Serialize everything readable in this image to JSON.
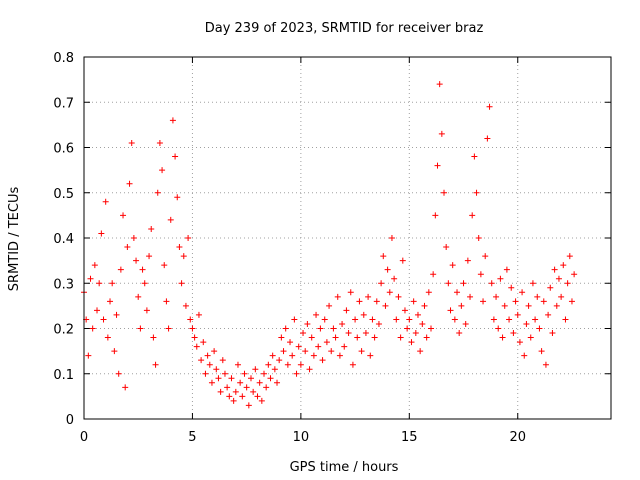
{
  "chart_data": {
    "type": "scatter",
    "title": "Day 239 of 2023, SRMTID for receiver braz",
    "xlabel": "GPS time / hours",
    "ylabel": "SRMTID / TECUs",
    "xlim": [
      0,
      24.3
    ],
    "ylim": [
      0,
      0.8
    ],
    "xticks": [
      0,
      5,
      10,
      15,
      20
    ],
    "yticks": [
      0,
      0.1,
      0.2,
      0.3,
      0.4,
      0.5,
      0.6,
      0.7,
      0.8
    ],
    "xtick_labels": [
      "0",
      "5",
      "10",
      "15",
      "20"
    ],
    "ytick_labels": [
      "0",
      "0.1",
      "0.2",
      "0.3",
      "0.4",
      "0.5",
      "0.6",
      "0.7",
      "0.8"
    ],
    "grid": true,
    "marker": "+",
    "color": "#ff0000",
    "series": [
      {
        "name": "braz",
        "points": [
          [
            0.0,
            0.28
          ],
          [
            0.1,
            0.22
          ],
          [
            0.2,
            0.14
          ],
          [
            0.3,
            0.31
          ],
          [
            0.4,
            0.2
          ],
          [
            0.5,
            0.34
          ],
          [
            0.6,
            0.24
          ],
          [
            0.7,
            0.3
          ],
          [
            0.8,
            0.41
          ],
          [
            0.9,
            0.22
          ],
          [
            1.0,
            0.48
          ],
          [
            1.1,
            0.18
          ],
          [
            1.2,
            0.26
          ],
          [
            1.3,
            0.3
          ],
          [
            1.4,
            0.15
          ],
          [
            1.5,
            0.23
          ],
          [
            1.6,
            0.1
          ],
          [
            1.7,
            0.33
          ],
          [
            1.8,
            0.45
          ],
          [
            1.9,
            0.07
          ],
          [
            2.0,
            0.38
          ],
          [
            2.1,
            0.52
          ],
          [
            2.2,
            0.61
          ],
          [
            2.3,
            0.4
          ],
          [
            2.4,
            0.35
          ],
          [
            2.5,
            0.27
          ],
          [
            2.6,
            0.2
          ],
          [
            2.7,
            0.33
          ],
          [
            2.8,
            0.3
          ],
          [
            2.9,
            0.24
          ],
          [
            3.0,
            0.36
          ],
          [
            3.1,
            0.42
          ],
          [
            3.2,
            0.18
          ],
          [
            3.3,
            0.12
          ],
          [
            3.4,
            0.5
          ],
          [
            3.5,
            0.61
          ],
          [
            3.6,
            0.55
          ],
          [
            3.7,
            0.34
          ],
          [
            3.8,
            0.26
          ],
          [
            3.9,
            0.2
          ],
          [
            4.0,
            0.44
          ],
          [
            4.1,
            0.66
          ],
          [
            4.2,
            0.58
          ],
          [
            4.3,
            0.49
          ],
          [
            4.4,
            0.38
          ],
          [
            4.5,
            0.3
          ],
          [
            4.6,
            0.36
          ],
          [
            4.7,
            0.25
          ],
          [
            4.8,
            0.4
          ],
          [
            4.9,
            0.22
          ],
          [
            5.0,
            0.2
          ],
          [
            5.1,
            0.18
          ],
          [
            5.2,
            0.16
          ],
          [
            5.3,
            0.23
          ],
          [
            5.4,
            0.13
          ],
          [
            5.5,
            0.17
          ],
          [
            5.6,
            0.1
          ],
          [
            5.7,
            0.14
          ],
          [
            5.8,
            0.12
          ],
          [
            5.9,
            0.08
          ],
          [
            6.0,
            0.15
          ],
          [
            6.1,
            0.11
          ],
          [
            6.2,
            0.09
          ],
          [
            6.3,
            0.06
          ],
          [
            6.4,
            0.13
          ],
          [
            6.5,
            0.1
          ],
          [
            6.6,
            0.07
          ],
          [
            6.7,
            0.05
          ],
          [
            6.8,
            0.09
          ],
          [
            6.9,
            0.04
          ],
          [
            7.0,
            0.06
          ],
          [
            7.1,
            0.12
          ],
          [
            7.2,
            0.08
          ],
          [
            7.3,
            0.05
          ],
          [
            7.4,
            0.1
          ],
          [
            7.5,
            0.07
          ],
          [
            7.6,
            0.03
          ],
          [
            7.7,
            0.09
          ],
          [
            7.8,
            0.06
          ],
          [
            7.9,
            0.11
          ],
          [
            8.0,
            0.05
          ],
          [
            8.1,
            0.08
          ],
          [
            8.2,
            0.04
          ],
          [
            8.3,
            0.1
          ],
          [
            8.4,
            0.07
          ],
          [
            8.5,
            0.12
          ],
          [
            8.6,
            0.09
          ],
          [
            8.7,
            0.14
          ],
          [
            8.8,
            0.11
          ],
          [
            8.9,
            0.08
          ],
          [
            9.0,
            0.13
          ],
          [
            9.1,
            0.18
          ],
          [
            9.2,
            0.15
          ],
          [
            9.3,
            0.2
          ],
          [
            9.4,
            0.12
          ],
          [
            9.5,
            0.17
          ],
          [
            9.6,
            0.14
          ],
          [
            9.7,
            0.22
          ],
          [
            9.8,
            0.1
          ],
          [
            9.9,
            0.16
          ],
          [
            10.0,
            0.12
          ],
          [
            10.1,
            0.19
          ],
          [
            10.2,
            0.15
          ],
          [
            10.3,
            0.21
          ],
          [
            10.4,
            0.11
          ],
          [
            10.5,
            0.18
          ],
          [
            10.6,
            0.14
          ],
          [
            10.7,
            0.23
          ],
          [
            10.8,
            0.16
          ],
          [
            10.9,
            0.2
          ],
          [
            11.0,
            0.13
          ],
          [
            11.1,
            0.22
          ],
          [
            11.2,
            0.17
          ],
          [
            11.3,
            0.25
          ],
          [
            11.4,
            0.15
          ],
          [
            11.5,
            0.2
          ],
          [
            11.6,
            0.18
          ],
          [
            11.7,
            0.27
          ],
          [
            11.8,
            0.14
          ],
          [
            11.9,
            0.21
          ],
          [
            12.0,
            0.16
          ],
          [
            12.1,
            0.24
          ],
          [
            12.2,
            0.19
          ],
          [
            12.3,
            0.28
          ],
          [
            12.4,
            0.12
          ],
          [
            12.5,
            0.22
          ],
          [
            12.6,
            0.18
          ],
          [
            12.7,
            0.26
          ],
          [
            12.8,
            0.15
          ],
          [
            12.9,
            0.23
          ],
          [
            13.0,
            0.19
          ],
          [
            13.1,
            0.27
          ],
          [
            13.2,
            0.14
          ],
          [
            13.3,
            0.22
          ],
          [
            13.4,
            0.18
          ],
          [
            13.5,
            0.26
          ],
          [
            13.6,
            0.21
          ],
          [
            13.7,
            0.3
          ],
          [
            13.8,
            0.36
          ],
          [
            13.9,
            0.25
          ],
          [
            14.0,
            0.33
          ],
          [
            14.1,
            0.28
          ],
          [
            14.2,
            0.4
          ],
          [
            14.3,
            0.31
          ],
          [
            14.4,
            0.22
          ],
          [
            14.5,
            0.27
          ],
          [
            14.6,
            0.18
          ],
          [
            14.7,
            0.35
          ],
          [
            14.8,
            0.24
          ],
          [
            14.9,
            0.2
          ],
          [
            15.0,
            0.22
          ],
          [
            15.1,
            0.17
          ],
          [
            15.2,
            0.26
          ],
          [
            15.3,
            0.19
          ],
          [
            15.4,
            0.23
          ],
          [
            15.5,
            0.15
          ],
          [
            15.6,
            0.21
          ],
          [
            15.7,
            0.25
          ],
          [
            15.8,
            0.18
          ],
          [
            15.9,
            0.28
          ],
          [
            16.0,
            0.2
          ],
          [
            16.1,
            0.32
          ],
          [
            16.2,
            0.45
          ],
          [
            16.3,
            0.56
          ],
          [
            16.4,
            0.74
          ],
          [
            16.5,
            0.63
          ],
          [
            16.6,
            0.5
          ],
          [
            16.7,
            0.38
          ],
          [
            16.8,
            0.3
          ],
          [
            16.9,
            0.24
          ],
          [
            17.0,
            0.34
          ],
          [
            17.1,
            0.22
          ],
          [
            17.2,
            0.28
          ],
          [
            17.3,
            0.19
          ],
          [
            17.4,
            0.25
          ],
          [
            17.5,
            0.3
          ],
          [
            17.6,
            0.21
          ],
          [
            17.7,
            0.35
          ],
          [
            17.8,
            0.27
          ],
          [
            17.9,
            0.45
          ],
          [
            18.0,
            0.58
          ],
          [
            18.1,
            0.5
          ],
          [
            18.2,
            0.4
          ],
          [
            18.3,
            0.32
          ],
          [
            18.4,
            0.26
          ],
          [
            18.5,
            0.36
          ],
          [
            18.6,
            0.62
          ],
          [
            18.7,
            0.69
          ],
          [
            18.8,
            0.3
          ],
          [
            18.9,
            0.22
          ],
          [
            19.0,
            0.27
          ],
          [
            19.1,
            0.2
          ],
          [
            19.2,
            0.31
          ],
          [
            19.3,
            0.18
          ],
          [
            19.4,
            0.25
          ],
          [
            19.5,
            0.33
          ],
          [
            19.6,
            0.22
          ],
          [
            19.7,
            0.29
          ],
          [
            19.8,
            0.19
          ],
          [
            19.9,
            0.26
          ],
          [
            20.0,
            0.23
          ],
          [
            20.1,
            0.17
          ],
          [
            20.2,
            0.28
          ],
          [
            20.3,
            0.14
          ],
          [
            20.4,
            0.21
          ],
          [
            20.5,
            0.25
          ],
          [
            20.6,
            0.18
          ],
          [
            20.7,
            0.3
          ],
          [
            20.8,
            0.22
          ],
          [
            20.9,
            0.27
          ],
          [
            21.0,
            0.2
          ],
          [
            21.1,
            0.15
          ],
          [
            21.2,
            0.26
          ],
          [
            21.3,
            0.12
          ],
          [
            21.4,
            0.23
          ],
          [
            21.5,
            0.29
          ],
          [
            21.6,
            0.19
          ],
          [
            21.7,
            0.33
          ],
          [
            21.8,
            0.25
          ],
          [
            21.9,
            0.31
          ],
          [
            22.0,
            0.27
          ],
          [
            22.1,
            0.34
          ],
          [
            22.2,
            0.22
          ],
          [
            22.3,
            0.3
          ],
          [
            22.4,
            0.36
          ],
          [
            22.5,
            0.26
          ],
          [
            22.6,
            0.32
          ]
        ]
      }
    ]
  }
}
